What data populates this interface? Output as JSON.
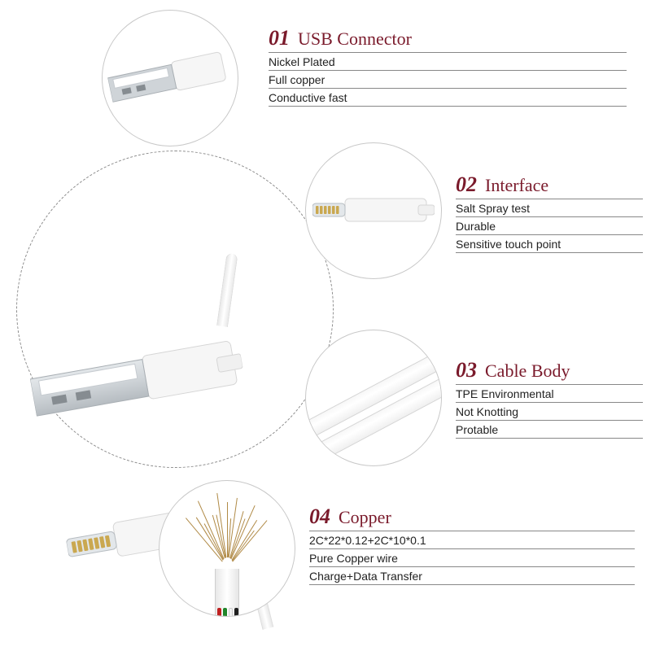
{
  "colors": {
    "title": "#7a1a2b",
    "num": "#7a1a2b",
    "text": "#222222",
    "rule": "#888888",
    "circle_border": "#c8c8c8",
    "dash_border": "#8b8b8b",
    "usb_metal": "#cfd4d8",
    "usb_metal_dark": "#a9afb4",
    "plastic_white": "#f6f6f6"
  },
  "features": [
    {
      "num": "01",
      "title": "USB Connector",
      "lines": [
        "Nickel Plated",
        "Full copper",
        "Conductive fast"
      ]
    },
    {
      "num": "02",
      "title": "Interface",
      "lines": [
        "Salt Spray test",
        "Durable",
        "Sensitive touch point"
      ]
    },
    {
      "num": "03",
      "title": "Cable Body",
      "lines": [
        "TPE Environmental",
        "Not Knotting",
        "Protable"
      ]
    },
    {
      "num": "04",
      "title": "Copper",
      "lines": [
        "2C*22*0.12+2C*10*0.1",
        "Pure Copper wire",
        "Charge+Data Transfer"
      ]
    }
  ],
  "copper_inner_colors": [
    "#c02020",
    "#20852a",
    "#f2f2f2",
    "#202020"
  ],
  "strand_angles": [
    -40,
    -32,
    -24,
    -16,
    -8,
    0,
    8,
    16,
    24,
    32,
    40,
    -28,
    -12,
    4,
    20,
    36
  ],
  "strand_heights": [
    70,
    62,
    78,
    55,
    80,
    68,
    74,
    60,
    72,
    58,
    66,
    50,
    54,
    48,
    52,
    46
  ],
  "strand_color": "#b08a46"
}
